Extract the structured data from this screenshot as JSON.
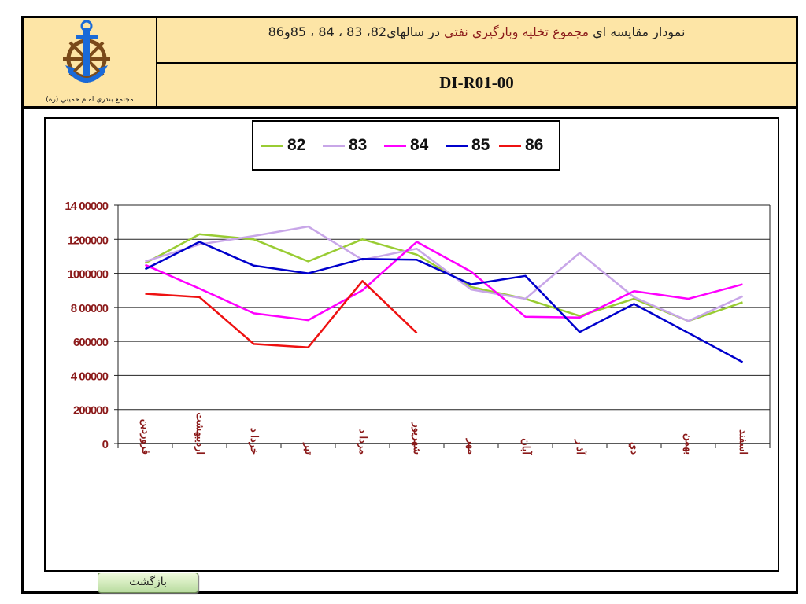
{
  "header": {
    "title_part1": "نمودار مقايسه اي",
    "title_part2": "مجموع تخليه وبارگيري نفتي",
    "title_part3": "در سالهاي82، 83 ، 84 ، 85و86",
    "code": "DI-R01-00",
    "logo_caption": "مجتمع بندري امام خميني (ره)"
  },
  "buttons": {
    "back_label": "بازگشت"
  },
  "colors": {
    "82": "#99cc33",
    "83": "#c8a6e8",
    "84": "#ff00ff",
    "85": "#0000cc",
    "86": "#ee1111",
    "axis_text": "#8b1a1a",
    "header_bg": "#fde5a6"
  },
  "chart_data": {
    "type": "line",
    "title": "",
    "xlabel": "",
    "ylabel": "",
    "ylim": [
      0,
      1400000
    ],
    "yticks": [
      0,
      200000,
      400000,
      600000,
      800000,
      1000000,
      1200000,
      1400000
    ],
    "ytick_labels": [
      "0",
      "200000",
      "4 00000",
      "600000",
      "8 00000",
      "1000000",
      "1200000",
      "14 00000"
    ],
    "grid": true,
    "legend_position": "top",
    "categories": [
      "فروردين",
      "ارديبهشت",
      "خردا د",
      "تير",
      "مردا د",
      "شهريور",
      "مهر",
      "آبان",
      "آذ ر",
      "دي",
      "بهمن",
      "اسفند"
    ],
    "series": [
      {
        "name": "82",
        "color": "#99cc33",
        "values": [
          1060000,
          1230000,
          1200000,
          1070000,
          1200000,
          1110000,
          920000,
          850000,
          750000,
          850000,
          720000,
          830000
        ]
      },
      {
        "name": "83",
        "color": "#c8a6e8",
        "values": [
          1070000,
          1170000,
          1220000,
          1275000,
          1080000,
          1145000,
          905000,
          850000,
          1120000,
          860000,
          720000,
          865000
        ]
      },
      {
        "name": "84",
        "color": "#ff00ff",
        "values": [
          1050000,
          910000,
          765000,
          725000,
          900000,
          1185000,
          1010000,
          745000,
          740000,
          895000,
          850000,
          935000
        ]
      },
      {
        "name": "85",
        "color": "#0000cc",
        "values": [
          1025000,
          1185000,
          1045000,
          1000000,
          1085000,
          1080000,
          935000,
          985000,
          655000,
          820000,
          650000,
          478000
        ]
      },
      {
        "name": "86",
        "color": "#ee1111",
        "values": [
          880000,
          860000,
          585000,
          565000,
          955000,
          650000,
          null,
          null,
          null,
          null,
          null,
          null
        ]
      }
    ]
  }
}
